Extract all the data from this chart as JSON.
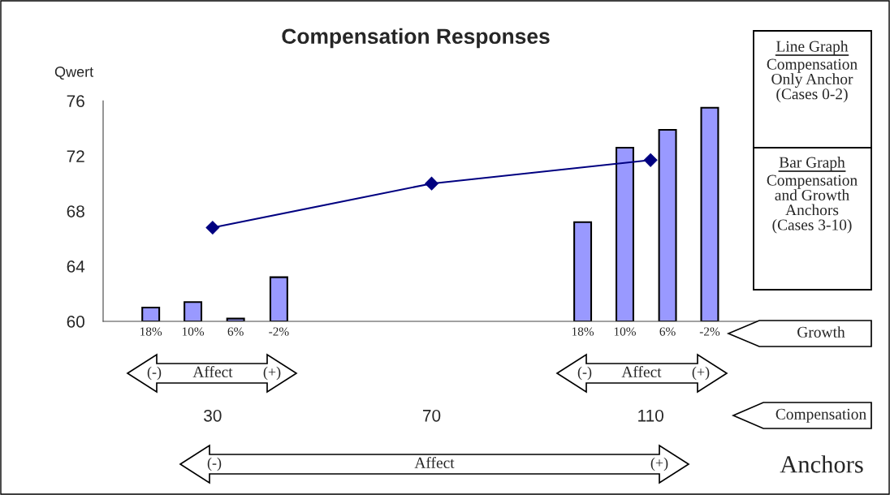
{
  "chart_data": {
    "type": "bar",
    "title": "Compensation Responses",
    "ylabel": "Qwert",
    "xlabel": "Compensation",
    "xlim": [
      10,
      130
    ],
    "ylim": [
      60,
      76
    ],
    "yticks": [
      60,
      64,
      68,
      72,
      76
    ],
    "xticks": [
      30,
      70,
      110
    ],
    "grid": false,
    "series": [
      {
        "color": "#9999ff",
        "x": [
          18.7,
          26.4,
          34.2,
          42.1,
          97.6,
          105.3,
          113.1,
          120.8
        ],
        "values": [
          61.0,
          61.4,
          60.2,
          63.2,
          67.2,
          72.6,
          73.9,
          75.5
        ]
      },
      {
        "type": "line",
        "color": "#000080",
        "marker": "diamond",
        "line_style": "solid",
        "x": [
          30,
          70,
          110
        ],
        "values": [
          66.8,
          70.0,
          71.7
        ]
      }
    ],
    "annotations": [
      {
        "text": "18%",
        "x": 18.7,
        "y": 60
      },
      {
        "text": "10%",
        "x": 26.4,
        "y": 60
      },
      {
        "text": "6%",
        "x": 34.2,
        "y": 60
      },
      {
        "text": "-2%",
        "x": 42.1,
        "y": 60
      },
      {
        "text": "18%",
        "x": 97.6,
        "y": 60
      },
      {
        "text": "10%",
        "x": 105.3,
        "y": 60
      },
      {
        "text": "6%",
        "x": 113.1,
        "y": 60
      },
      {
        "text": "-2%",
        "x": 120.8,
        "y": 60
      },
      "Growth",
      "Line Graph",
      "Compensation\nOnly Anchor\n(Cases 0-2)",
      "Bar Graph",
      "Compensation\nand Growth\nAnchors\n(Cases 3-10)",
      "(-)",
      "Affect",
      "(+)",
      "(-)",
      "Affect",
      "(+)",
      "(-)",
      "Affect",
      "(+)",
      "Anchors"
    ]
  }
}
